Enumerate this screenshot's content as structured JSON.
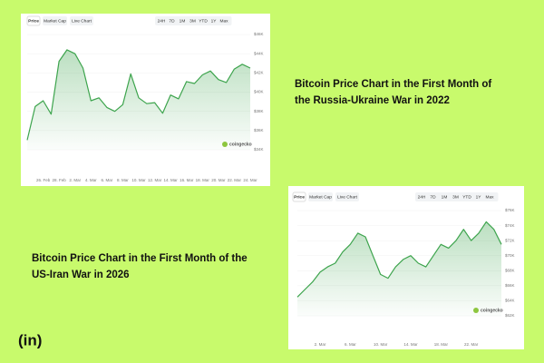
{
  "chart_data": [
    {
      "type": "line",
      "title": "Bitcoin Price Chart in the First Month of the Russia-Ukraine War in 2022",
      "categories": [
        null,
        null,
        "26. Feb",
        null,
        "28. Feb",
        null,
        "2. Mar",
        null,
        "4. Mar",
        null,
        "6. Mar",
        null,
        "8. Mar",
        null,
        "10. Mar",
        null,
        "12. Mar",
        null,
        "14. Mar",
        null,
        "16. Mar",
        null,
        "18. Mar",
        null,
        "20. Mar",
        null,
        "22. Mar",
        null,
        "24. Mar"
      ],
      "values": [
        35000,
        38500,
        39100,
        37700,
        43200,
        44400,
        44000,
        42500,
        39100,
        39400,
        38400,
        38000,
        38700,
        41900,
        39400,
        38800,
        38900,
        37800,
        39700,
        39300,
        41100,
        40900,
        41800,
        42200,
        41300,
        41000,
        42400,
        42900,
        42500
      ],
      "color": "#3da44d",
      "ylim": [
        34000,
        46000
      ],
      "yticks": [
        {
          "value": 46000,
          "label": "$46K"
        },
        {
          "value": 44000,
          "label": "$44K"
        },
        {
          "value": 42000,
          "label": "$42K"
        },
        {
          "value": 40000,
          "label": "$40K"
        },
        {
          "value": 38000,
          "label": "$38K"
        },
        {
          "value": 36000,
          "label": "$36K"
        },
        {
          "value": 34000,
          "label": "$34K"
        }
      ]
    },
    {
      "type": "line",
      "title": "Bitcoin Price Chart in the First Month of the US-Iran War in 2026",
      "categories": [
        null,
        null,
        null,
        "2. Mar",
        null,
        null,
        null,
        "6. Mar",
        null,
        null,
        null,
        "10. Mar",
        null,
        null,
        null,
        "14. Mar",
        null,
        null,
        null,
        "18. Mar",
        null,
        null,
        null,
        "22. Mar",
        null,
        null,
        null,
        null
      ],
      "values": [
        64500,
        65500,
        66500,
        67800,
        68500,
        69000,
        70500,
        71500,
        73000,
        72500,
        70000,
        67500,
        67000,
        68500,
        69500,
        70000,
        69000,
        68500,
        70000,
        71500,
        71000,
        72000,
        73500,
        72000,
        73000,
        74500,
        73500,
        71500
      ],
      "color": "#3da44d",
      "ylim": [
        62000,
        76000
      ],
      "yticks": [
        {
          "value": 76000,
          "label": "$76K"
        },
        {
          "value": 74000,
          "label": "$74K"
        },
        {
          "value": 72000,
          "label": "$72K"
        },
        {
          "value": 70000,
          "label": "$70K"
        },
        {
          "value": 68000,
          "label": "$68K"
        },
        {
          "value": 66000,
          "label": "$66K"
        },
        {
          "value": 64000,
          "label": "$64K"
        },
        {
          "value": 62000,
          "label": "$62K"
        }
      ]
    }
  ],
  "ui": {
    "tabs": [
      "Price",
      "Market Cap",
      "Live Chart"
    ],
    "ranges": [
      "24H",
      "7D",
      "1M",
      "3M",
      "YTD",
      "1Y",
      "Max"
    ],
    "watermark": "coingecko"
  },
  "logo": "(in)"
}
